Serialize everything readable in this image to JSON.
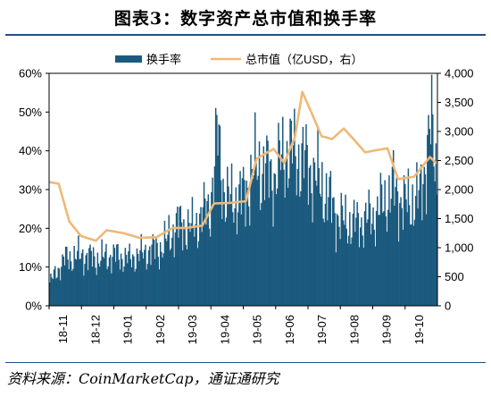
{
  "figure": {
    "title": "图表3：数字资产总市值和换手率",
    "source": "资料来源：CoinMarketCap，通证通研究"
  },
  "colors": {
    "turnover": "#1b5a7e",
    "market_cap": "#f0b878",
    "rule": "#1f4e8c"
  },
  "chart_data": {
    "type": "bar+line",
    "x_tick_labels": [
      "18-11",
      "18-12",
      "19-01",
      "19-02",
      "19-03",
      "19-04",
      "19-05",
      "19-06",
      "19-07",
      "19-08",
      "19-09",
      "19-10"
    ],
    "x_range": [
      "2018-11-01",
      "2019-11-01"
    ],
    "left_axis": {
      "ticks": [
        "0%",
        "10%",
        "20%",
        "30%",
        "40%",
        "50%",
        "60%"
      ],
      "min": 0,
      "max": 60,
      "unit": "%"
    },
    "right_axis": {
      "ticks": [
        "0",
        "500",
        "1,000",
        "1,500",
        "2,000",
        "2,500",
        "3,000",
        "3,500",
        "4,000"
      ],
      "min": 0,
      "max": 4000,
      "unit": "亿USD"
    },
    "legend": {
      "position": "top-center"
    },
    "series": [
      {
        "name": "换手率",
        "kind": "bar",
        "axis": "left",
        "points": [
          [
            "2018-11-01",
            6
          ],
          [
            "2018-11-15",
            12
          ],
          [
            "2018-12-01",
            13
          ],
          [
            "2018-12-15",
            12
          ],
          [
            "2019-01-01",
            13
          ],
          [
            "2019-01-15",
            12
          ],
          [
            "2019-02-01",
            14
          ],
          [
            "2019-02-15",
            15
          ],
          [
            "2019-03-01",
            21
          ],
          [
            "2019-03-15",
            20
          ],
          [
            "2019-04-01",
            26
          ],
          [
            "2019-04-08",
            44
          ],
          [
            "2019-04-15",
            27
          ],
          [
            "2019-05-01",
            28
          ],
          [
            "2019-05-15",
            36
          ],
          [
            "2019-06-01",
            33
          ],
          [
            "2019-06-10",
            40
          ],
          [
            "2019-06-25",
            38
          ],
          [
            "2019-07-10",
            33
          ],
          [
            "2019-07-20",
            28
          ],
          [
            "2019-08-01",
            22
          ],
          [
            "2019-08-15",
            21
          ],
          [
            "2019-09-01",
            23
          ],
          [
            "2019-09-20",
            30
          ],
          [
            "2019-10-01",
            26
          ],
          [
            "2019-10-15",
            28
          ],
          [
            "2019-10-25",
            46
          ],
          [
            "2019-10-31",
            34
          ]
        ]
      },
      {
        "name": "总市值（亿USD，右）",
        "kind": "line",
        "axis": "right",
        "points": [
          [
            "2018-11-01",
            2130
          ],
          [
            "2018-11-10",
            2100
          ],
          [
            "2018-11-20",
            1450
          ],
          [
            "2018-12-01",
            1200
          ],
          [
            "2018-12-15",
            1120
          ],
          [
            "2018-12-25",
            1300
          ],
          [
            "2019-01-10",
            1250
          ],
          [
            "2019-01-25",
            1170
          ],
          [
            "2019-02-10",
            1180
          ],
          [
            "2019-02-25",
            1340
          ],
          [
            "2019-03-10",
            1340
          ],
          [
            "2019-03-25",
            1380
          ],
          [
            "2019-04-05",
            1760
          ],
          [
            "2019-04-20",
            1770
          ],
          [
            "2019-05-05",
            1800
          ],
          [
            "2019-05-15",
            2530
          ],
          [
            "2019-05-31",
            2700
          ],
          [
            "2019-06-10",
            2460
          ],
          [
            "2019-06-20",
            2900
          ],
          [
            "2019-06-27",
            3680
          ],
          [
            "2019-07-05",
            3350
          ],
          [
            "2019-07-15",
            2920
          ],
          [
            "2019-07-25",
            2870
          ],
          [
            "2019-08-05",
            3050
          ],
          [
            "2019-08-15",
            2850
          ],
          [
            "2019-08-25",
            2640
          ],
          [
            "2019-09-05",
            2680
          ],
          [
            "2019-09-15",
            2710
          ],
          [
            "2019-09-25",
            2180
          ],
          [
            "2019-10-10",
            2220
          ],
          [
            "2019-10-25",
            2560
          ],
          [
            "2019-10-31",
            2450
          ]
        ]
      }
    ]
  }
}
